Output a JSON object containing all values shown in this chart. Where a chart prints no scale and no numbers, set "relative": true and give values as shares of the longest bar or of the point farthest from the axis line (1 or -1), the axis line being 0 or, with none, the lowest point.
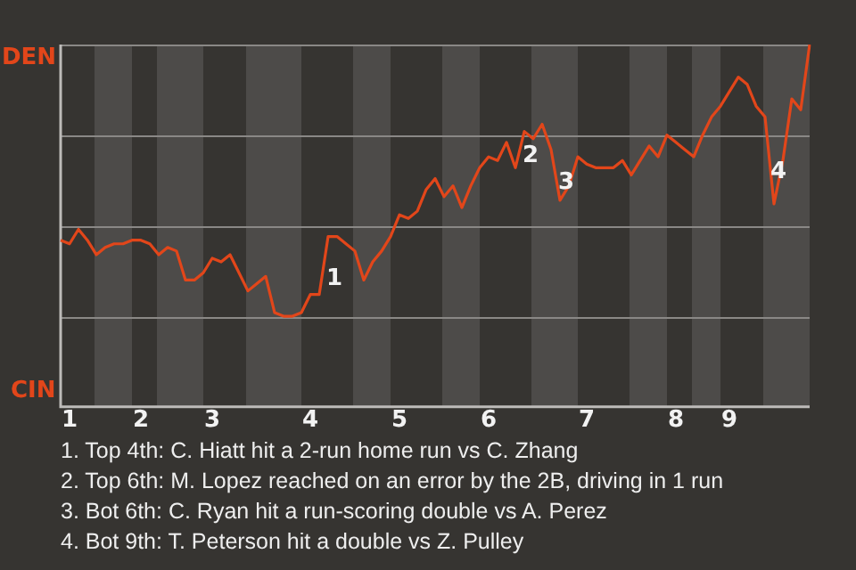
{
  "chart_data": {
    "type": "line",
    "relative": true,
    "categories": [
      null,
      "1",
      null,
      null,
      null,
      null,
      null,
      null,
      null,
      "2",
      null,
      null,
      null,
      null,
      null,
      null,
      null,
      "3",
      null,
      null,
      null,
      null,
      null,
      null,
      null,
      null,
      null,
      null,
      "4",
      null,
      null,
      null,
      null,
      null,
      null,
      null,
      null,
      null,
      "5",
      null,
      null,
      null,
      null,
      null,
      null,
      null,
      null,
      null,
      "6",
      null,
      null,
      null,
      null,
      null,
      null,
      null,
      null,
      null,
      null,
      "7",
      null,
      null,
      null,
      null,
      null,
      null,
      null,
      null,
      null,
      "8",
      null,
      null,
      null,
      null,
      null,
      "9",
      null,
      null,
      null,
      null,
      null,
      null,
      null,
      null,
      null
    ],
    "grid": "y",
    "legend": false,
    "marker": "none",
    "line_style": "solid",
    "series": [
      {
        "color": "#e2461a",
        "values": [
          0.46,
          0.45,
          0.49,
          0.46,
          0.42,
          0.44,
          0.45,
          0.45,
          0.46,
          0.46,
          0.45,
          0.42,
          0.44,
          0.43,
          0.35,
          0.35,
          0.37,
          0.41,
          0.4,
          0.42,
          0.37,
          0.32,
          0.34,
          0.36,
          0.26,
          0.25,
          0.25,
          0.26,
          0.31,
          0.31,
          0.47,
          0.47,
          0.45,
          0.43,
          0.35,
          0.4,
          0.43,
          0.47,
          0.53,
          0.52,
          0.54,
          0.6,
          0.63,
          0.58,
          0.61,
          0.55,
          0.61,
          0.66,
          0.69,
          0.68,
          0.73,
          0.66,
          0.76,
          0.74,
          0.78,
          0.71,
          0.57,
          0.61,
          0.69,
          0.67,
          0.66,
          0.66,
          0.66,
          0.68,
          0.64,
          0.68,
          0.72,
          0.69,
          0.75,
          0.73,
          0.71,
          0.69,
          0.75,
          0.8,
          0.83,
          0.87,
          0.91,
          0.89,
          0.83,
          0.8,
          0.56,
          0.68,
          0.85,
          0.82,
          1.0
        ]
      }
    ],
    "annotations": [
      "DEN",
      "CIN",
      "1",
      "2",
      "3",
      "4",
      "1. Top 4th: C. Hiatt hit a 2-run home run vs C. Zhang",
      "2. Top 6th: M. Lopez reached on an error by the 2B, driving in 1 run",
      "3. Bot 6th: C. Ryan hit a run-scoring double vs A. Perez",
      "4. Bot 9th: T. Peterson hit a double vs Z. Pulley"
    ]
  }
}
